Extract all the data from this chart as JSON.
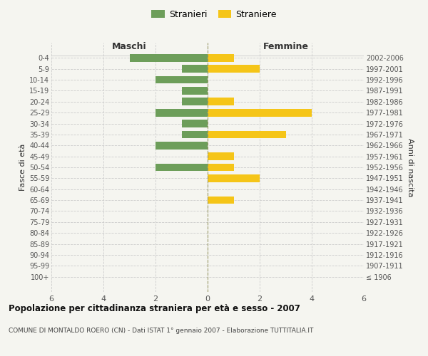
{
  "age_groups": [
    "100+",
    "95-99",
    "90-94",
    "85-89",
    "80-84",
    "75-79",
    "70-74",
    "65-69",
    "60-64",
    "55-59",
    "50-54",
    "45-49",
    "40-44",
    "35-39",
    "30-34",
    "25-29",
    "20-24",
    "15-19",
    "10-14",
    "5-9",
    "0-4"
  ],
  "birth_years": [
    "≤ 1906",
    "1907-1911",
    "1912-1916",
    "1917-1921",
    "1922-1926",
    "1927-1931",
    "1932-1936",
    "1937-1941",
    "1942-1946",
    "1947-1951",
    "1952-1956",
    "1957-1961",
    "1962-1966",
    "1967-1971",
    "1972-1976",
    "1977-1981",
    "1982-1986",
    "1987-1991",
    "1992-1996",
    "1997-2001",
    "2002-2006"
  ],
  "males": [
    0,
    0,
    0,
    0,
    0,
    0,
    0,
    0,
    0,
    0,
    2,
    0,
    2,
    1,
    1,
    2,
    1,
    1,
    2,
    1,
    3
  ],
  "females": [
    0,
    0,
    0,
    0,
    0,
    0,
    0,
    1,
    0,
    2,
    1,
    1,
    0,
    3,
    0,
    4,
    1,
    0,
    0,
    2,
    1
  ],
  "male_color": "#6d9e5a",
  "female_color": "#f5c518",
  "male_label": "Stranieri",
  "female_label": "Straniere",
  "xlim": 6,
  "xlabel_maschi": "Maschi",
  "xlabel_femmine": "Femmine",
  "ylabel": "Fasce di età",
  "ylabel_right": "Anni di nascita",
  "title": "Popolazione per cittadinanza straniera per età e sesso - 2007",
  "subtitle": "COMUNE DI MONTALDO ROERO (CN) - Dati ISTAT 1° gennaio 2007 - Elaborazione TUTTITALIA.IT",
  "grid_color": "#cccccc",
  "bg_color": "#f5f5f0",
  "text_color": "#555555"
}
